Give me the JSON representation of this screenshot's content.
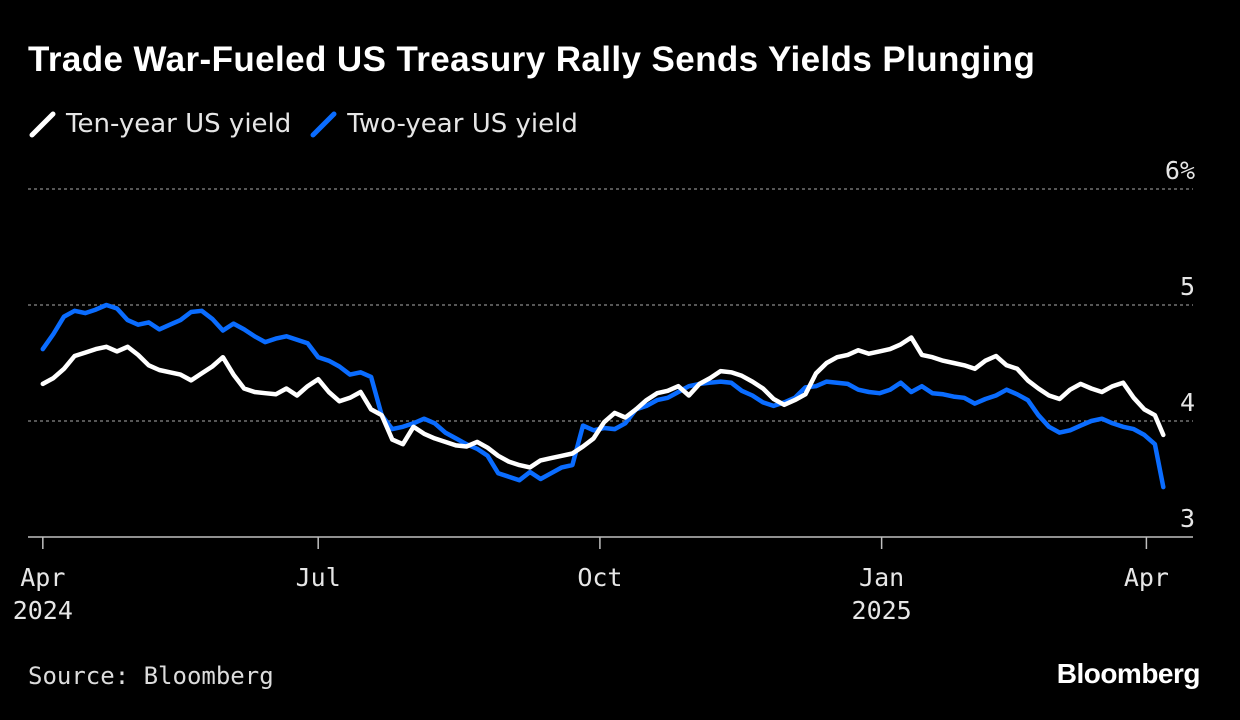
{
  "title": "Trade War-Fueled US Treasury Rally Sends Yields Plunging",
  "source": "Source: Bloomberg",
  "brand": "Bloomberg",
  "colors": {
    "background": "#000000",
    "ten_year": "#ffffff",
    "two_year": "#0a6cff",
    "grid": "#8a8a8a",
    "axis": "#bfbfbf"
  },
  "chart_data": {
    "type": "line",
    "title": "Trade War-Fueled US Treasury Rally Sends Yields Plunging",
    "xlabel": "",
    "ylabel": "",
    "x_unit": "weeks since 2024-04-01",
    "xlim": [
      -0.7,
      54.3
    ],
    "ylim": [
      3,
      6
    ],
    "y_ticks": [
      {
        "value": 6,
        "label": "6%"
      },
      {
        "value": 5,
        "label": "5"
      },
      {
        "value": 4,
        "label": "4"
      },
      {
        "value": 3,
        "label": "3"
      }
    ],
    "x_ticks": [
      {
        "value": 0,
        "label": "Apr",
        "sublabel": "2024"
      },
      {
        "value": 13,
        "label": "Jul",
        "sublabel": ""
      },
      {
        "value": 26.3,
        "label": "Oct",
        "sublabel": ""
      },
      {
        "value": 39.6,
        "label": "Jan",
        "sublabel": "2025"
      },
      {
        "value": 52.1,
        "label": "Apr",
        "sublabel": ""
      }
    ],
    "grid": true,
    "legend_position": "top-left",
    "series": [
      {
        "name": "Ten-year US yield",
        "color": "#ffffff",
        "x": [
          0,
          0.5,
          1,
          1.5,
          2,
          2.5,
          3,
          3.5,
          4,
          4.5,
          5,
          5.5,
          6,
          6.5,
          7,
          7.5,
          8,
          8.5,
          9,
          9.5,
          10,
          10.5,
          11,
          11.5,
          12,
          12.5,
          13,
          13.5,
          14,
          14.5,
          15,
          15.5,
          16,
          16.5,
          17,
          17.5,
          18,
          18.5,
          19,
          19.5,
          20,
          20.5,
          21,
          21.5,
          22,
          22.5,
          23,
          23.5,
          24,
          24.5,
          25,
          25.5,
          26,
          26.5,
          27,
          27.5,
          28,
          28.5,
          29,
          29.5,
          30,
          30.5,
          31,
          31.5,
          32,
          32.5,
          33,
          33.5,
          34,
          34.5,
          35,
          35.5,
          36,
          36.5,
          37,
          37.5,
          38,
          38.5,
          39,
          39.5,
          40,
          40.5,
          41,
          41.5,
          42,
          42.5,
          43,
          43.5,
          44,
          44.5,
          45,
          45.5,
          46,
          46.5,
          47,
          47.5,
          48,
          48.5,
          49,
          49.5,
          50,
          50.5,
          51,
          51.5,
          52,
          52.5,
          52.9
        ],
        "values": [
          4.32,
          4.37,
          4.45,
          4.56,
          4.59,
          4.62,
          4.64,
          4.6,
          4.64,
          4.57,
          4.48,
          4.44,
          4.42,
          4.4,
          4.35,
          4.41,
          4.47,
          4.55,
          4.4,
          4.28,
          4.25,
          4.24,
          4.23,
          4.28,
          4.22,
          4.3,
          4.36,
          4.25,
          4.17,
          4.2,
          4.25,
          4.1,
          4.05,
          3.84,
          3.8,
          3.95,
          3.89,
          3.85,
          3.82,
          3.79,
          3.78,
          3.82,
          3.77,
          3.7,
          3.65,
          3.62,
          3.6,
          3.66,
          3.68,
          3.7,
          3.72,
          3.78,
          3.85,
          3.99,
          4.07,
          4.03,
          4.1,
          4.18,
          4.24,
          4.26,
          4.3,
          4.22,
          4.32,
          4.37,
          4.43,
          4.42,
          4.39,
          4.34,
          4.28,
          4.19,
          4.14,
          4.18,
          4.23,
          4.41,
          4.5,
          4.55,
          4.57,
          4.61,
          4.58,
          4.6,
          4.62,
          4.66,
          4.72,
          4.57,
          4.55,
          4.52,
          4.5,
          4.48,
          4.45,
          4.52,
          4.56,
          4.48,
          4.45,
          4.35,
          4.28,
          4.22,
          4.19,
          4.27,
          4.32,
          4.28,
          4.25,
          4.3,
          4.33,
          4.2,
          4.1,
          4.05,
          3.88
        ]
      },
      {
        "name": "Two-year US yield",
        "color": "#0a6cff",
        "x": [
          0,
          0.5,
          1,
          1.5,
          2,
          2.5,
          3,
          3.5,
          4,
          4.5,
          5,
          5.5,
          6,
          6.5,
          7,
          7.5,
          8,
          8.5,
          9,
          9.5,
          10,
          10.5,
          11,
          11.5,
          12,
          12.5,
          13,
          13.5,
          14,
          14.5,
          15,
          15.5,
          16,
          16.5,
          17,
          17.5,
          18,
          18.5,
          19,
          19.5,
          20,
          20.5,
          21,
          21.5,
          22,
          22.5,
          23,
          23.5,
          24,
          24.5,
          25,
          25.5,
          26,
          26.5,
          27,
          27.5,
          28,
          28.5,
          29,
          29.5,
          30,
          30.5,
          31,
          31.5,
          32,
          32.5,
          33,
          33.5,
          34,
          34.5,
          35,
          35.5,
          36,
          36.5,
          37,
          37.5,
          38,
          38.5,
          39,
          39.5,
          40,
          40.5,
          41,
          41.5,
          42,
          42.5,
          43,
          43.5,
          44,
          44.5,
          45,
          45.5,
          46,
          46.5,
          47,
          47.5,
          48,
          48.5,
          49,
          49.5,
          50,
          50.5,
          51,
          51.5,
          52,
          52.5,
          52.9
        ],
        "values": [
          4.62,
          4.75,
          4.9,
          4.95,
          4.93,
          4.96,
          5.0,
          4.97,
          4.87,
          4.83,
          4.85,
          4.79,
          4.83,
          4.87,
          4.94,
          4.95,
          4.88,
          4.78,
          4.84,
          4.79,
          4.73,
          4.68,
          4.71,
          4.73,
          4.7,
          4.67,
          4.55,
          4.52,
          4.47,
          4.4,
          4.42,
          4.38,
          4.05,
          3.93,
          3.95,
          3.98,
          4.02,
          3.98,
          3.9,
          3.85,
          3.8,
          3.76,
          3.7,
          3.55,
          3.52,
          3.49,
          3.56,
          3.5,
          3.55,
          3.6,
          3.62,
          3.96,
          3.92,
          3.94,
          3.93,
          3.98,
          4.1,
          4.13,
          4.18,
          4.2,
          4.25,
          4.3,
          4.32,
          4.33,
          4.34,
          4.33,
          4.26,
          4.22,
          4.16,
          4.13,
          4.16,
          4.2,
          4.29,
          4.3,
          4.34,
          4.33,
          4.32,
          4.27,
          4.25,
          4.24,
          4.27,
          4.33,
          4.25,
          4.3,
          4.24,
          4.23,
          4.21,
          4.2,
          4.15,
          4.19,
          4.22,
          4.27,
          4.23,
          4.18,
          4.05,
          3.95,
          3.9,
          3.92,
          3.96,
          4.0,
          4.02,
          3.98,
          3.95,
          3.93,
          3.88,
          3.8,
          3.43
        ]
      }
    ]
  }
}
